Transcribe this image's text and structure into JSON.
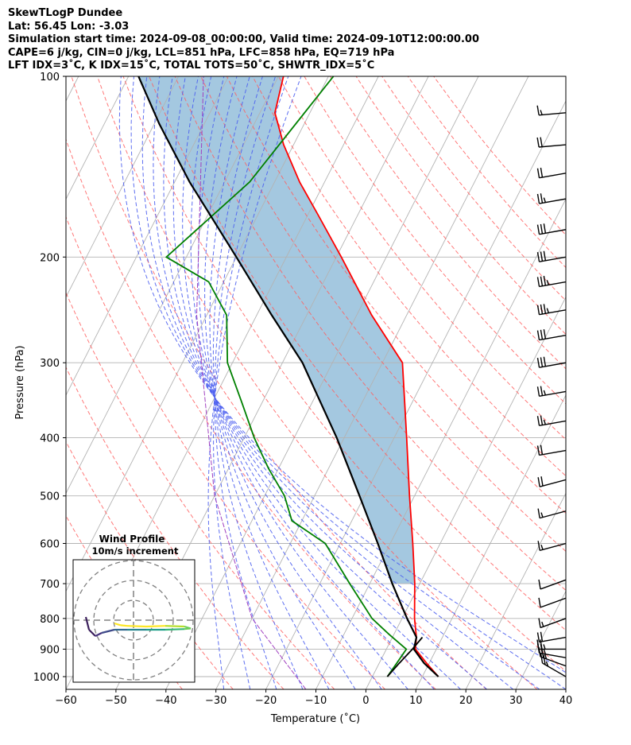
{
  "header": {
    "title": "SkewTLogP Dundee",
    "location": "Lat: 56.45   Lon: -3.03",
    "times": "Simulation start time: 2024-09-08_00:00:00, Valid time: 2024-09-10T12:00:00.00",
    "indices1": "CAPE=6 j/kg, CIN=0 j/kg, LCL=851 hPa, LFC=858 hPa, EQ=719 hPa",
    "indices2": "LFT IDX=3˚C, K IDX=15˚C, TOTAL TOTS=50˚C, SHWTR_IDX=5˚C"
  },
  "chart_data": {
    "type": "skew-t log-p",
    "xlabel": "Temperature (˚C)",
    "ylabel": "Pressure (hPa)",
    "xlim": [
      -60,
      40
    ],
    "ylim": [
      1050,
      100
    ],
    "y_log_scale": true,
    "grid": true,
    "x_ticks": [
      "−60",
      "−50",
      "−40",
      "−30",
      "−20",
      "−10",
      "0",
      "10",
      "20",
      "30",
      "40"
    ],
    "y_ticks": [
      "1000",
      "900",
      "800",
      "700",
      "600",
      "500",
      "400",
      "300",
      "200",
      "100"
    ],
    "series": [
      {
        "role": "temperature",
        "color": "#ff0000",
        "points": [
          [
            13.2,
            1000
          ],
          [
            9.5,
            950
          ],
          [
            5.8,
            900
          ],
          [
            4.8,
            860
          ],
          [
            2.5,
            800
          ],
          [
            -1,
            700
          ],
          [
            -5.5,
            600
          ],
          [
            -11,
            500
          ],
          [
            -17.5,
            400
          ],
          [
            -26,
            300
          ],
          [
            -37,
            250
          ],
          [
            -49,
            200
          ],
          [
            -58,
            170
          ],
          [
            -65,
            150
          ],
          [
            -72,
            130
          ],
          [
            -77,
            115
          ],
          [
            -79,
            100
          ]
        ]
      },
      {
        "role": "dewpoint",
        "color": "#008000",
        "points": [
          [
            3,
            1000
          ],
          [
            3.5,
            950
          ],
          [
            4,
            900
          ],
          [
            -1,
            850
          ],
          [
            -6,
            800
          ],
          [
            -14,
            700
          ],
          [
            -23,
            600
          ],
          [
            -32,
            550
          ],
          [
            -36,
            500
          ],
          [
            -42,
            450
          ],
          [
            -48,
            400
          ],
          [
            -54,
            350
          ],
          [
            -61,
            300
          ],
          [
            -66,
            250
          ],
          [
            -73,
            220
          ],
          [
            -84,
            200
          ],
          [
            -75,
            150
          ],
          [
            -69,
            100
          ]
        ]
      },
      {
        "role": "parcel",
        "color": "#000000",
        "points": [
          [
            13.2,
            1000
          ],
          [
            9,
            950
          ],
          [
            5.5,
            900
          ],
          [
            4.8,
            860
          ],
          [
            1,
            800
          ],
          [
            -5.5,
            700
          ],
          [
            -12.5,
            600
          ],
          [
            -21,
            500
          ],
          [
            -31.5,
            400
          ],
          [
            -46,
            300
          ],
          [
            -57,
            250
          ],
          [
            -70,
            200
          ],
          [
            -87,
            150
          ],
          [
            -99,
            120
          ],
          [
            -108,
            100
          ]
        ]
      },
      {
        "role": "surface-parcel-lower",
        "color": "#000000",
        "points": [
          [
            3,
            1000
          ],
          [
            4,
            950
          ],
          [
            5.2,
            900
          ],
          [
            6,
            860
          ]
        ]
      }
    ],
    "cape_shading_color": "#a4c8e0",
    "wind_barbs": [
      {
        "p": 1000,
        "spd": 25,
        "dir": 300
      },
      {
        "p": 960,
        "spd": 25,
        "dir": 290
      },
      {
        "p": 930,
        "spd": 25,
        "dir": 280
      },
      {
        "p": 900,
        "spd": 25,
        "dir": 270
      },
      {
        "p": 860,
        "spd": 20,
        "dir": 260
      },
      {
        "p": 800,
        "spd": 15,
        "dir": 250
      },
      {
        "p": 740,
        "spd": 10,
        "dir": 250
      },
      {
        "p": 690,
        "spd": 10,
        "dir": 250
      },
      {
        "p": 600,
        "spd": 15,
        "dir": 255
      },
      {
        "p": 530,
        "spd": 15,
        "dir": 255
      },
      {
        "p": 470,
        "spd": 20,
        "dir": 255
      },
      {
        "p": 420,
        "spd": 20,
        "dir": 260
      },
      {
        "p": 375,
        "spd": 25,
        "dir": 260
      },
      {
        "p": 335,
        "spd": 25,
        "dir": 260
      },
      {
        "p": 300,
        "spd": 30,
        "dir": 260
      },
      {
        "p": 270,
        "spd": 30,
        "dir": 260
      },
      {
        "p": 245,
        "spd": 35,
        "dir": 260
      },
      {
        "p": 220,
        "spd": 35,
        "dir": 260
      },
      {
        "p": 200,
        "spd": 30,
        "dir": 260
      },
      {
        "p": 180,
        "spd": 30,
        "dir": 260
      },
      {
        "p": 160,
        "spd": 25,
        "dir": 260
      },
      {
        "p": 145,
        "spd": 20,
        "dir": 260
      },
      {
        "p": 130,
        "spd": 20,
        "dir": 265
      },
      {
        "p": 115,
        "spd": 15,
        "dir": 265
      }
    ],
    "inset": {
      "title": "Wind Profile",
      "subtitle": "10m/s increment",
      "hodograph": [
        [
          -7.5,
          0.5
        ],
        [
          -7,
          -1.5
        ],
        [
          -6,
          -2.5
        ],
        [
          -5,
          -2
        ],
        [
          -3,
          -1.5
        ],
        [
          -1,
          -1.5
        ],
        [
          2,
          -1.5
        ],
        [
          5,
          -1.5
        ],
        [
          8,
          -1.4
        ],
        [
          9,
          -1.3
        ],
        [
          8,
          -1.0
        ],
        [
          5,
          -0.9
        ],
        [
          2,
          -1.0
        ],
        [
          -1,
          -0.9
        ],
        [
          -2,
          -0.8
        ],
        [
          -3,
          -0.5
        ]
      ]
    }
  }
}
